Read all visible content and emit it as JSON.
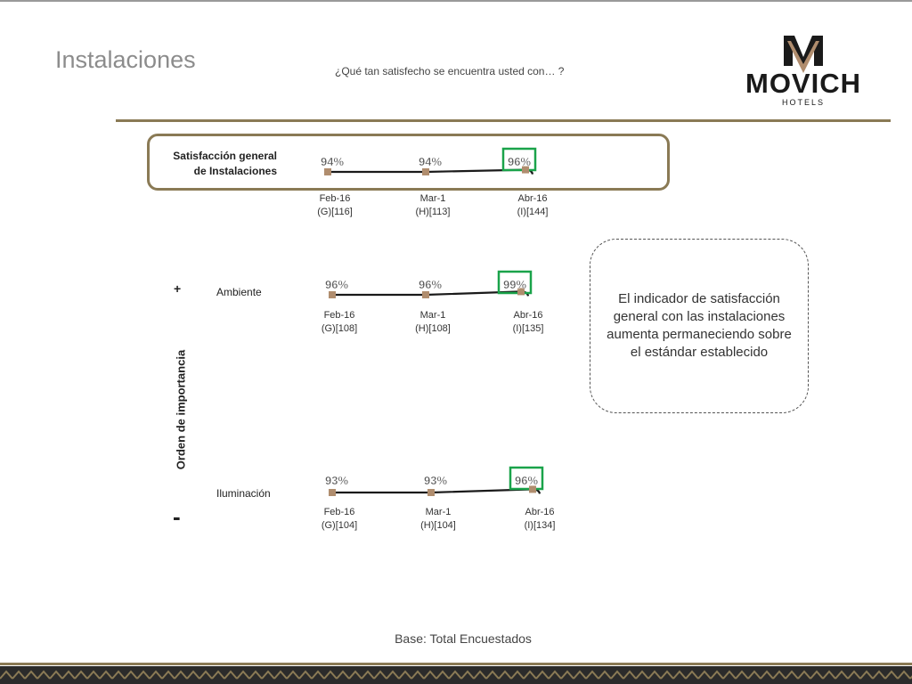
{
  "header": {
    "title": "Instalaciones",
    "question": "¿Qué tan satisfecho se encuentra usted con… ?"
  },
  "logo": {
    "brand": "MOVICH",
    "sub": "HOTELS"
  },
  "importance": {
    "axis_title": "Orden de importancia",
    "plus": "+",
    "minus": "-"
  },
  "callout": {
    "text": "El indicador de satisfacción general con las instalaciones aumenta permaneciendo sobre el estándar establecido"
  },
  "footer": {
    "base": "Base: Total Encuestados"
  },
  "colors": {
    "accent": "#8a7a55",
    "marker": "#b08d6e",
    "highlight": "#1aa34a",
    "line": "#1a1a1a"
  },
  "chart_data": [
    {
      "type": "line",
      "label_lines": [
        "Satisfacción general",
        "de Instalaciones"
      ],
      "categories": [
        "Feb-16",
        "Mar-1",
        "Abr-16"
      ],
      "bases": [
        "(G)[116]",
        "(H)[113]",
        "(I)[144]"
      ],
      "values": [
        94,
        94,
        96
      ],
      "value_labels": [
        "94%",
        "94%",
        "96%"
      ],
      "highlight_index": 2
    },
    {
      "type": "line",
      "label_lines": [
        "Ambiente"
      ],
      "categories": [
        "Feb-16",
        "Mar-1",
        "Abr-16"
      ],
      "bases": [
        "(G)[108]",
        "(H)[108]",
        "(I)[135]"
      ],
      "values": [
        96,
        96,
        99
      ],
      "value_labels": [
        "96%",
        "96%",
        "99%"
      ],
      "highlight_index": 2
    },
    {
      "type": "line",
      "label_lines": [
        "Iluminación"
      ],
      "categories": [
        "Feb-16",
        "Mar-1",
        "Abr-16"
      ],
      "bases": [
        "(G)[104]",
        "(H)[104]",
        "(I)[134]"
      ],
      "values": [
        93,
        93,
        96
      ],
      "value_labels": [
        "93%",
        "93%",
        "96%"
      ],
      "highlight_index": 2
    }
  ]
}
